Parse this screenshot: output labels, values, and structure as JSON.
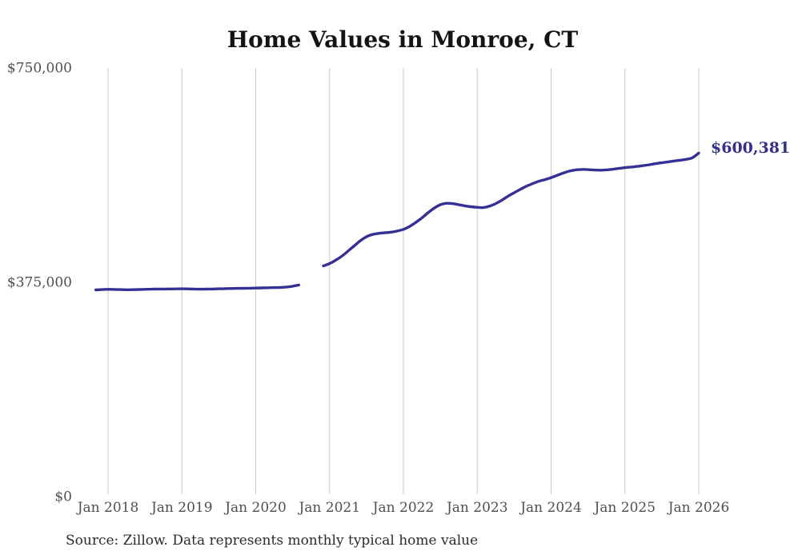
{
  "title": "Home Values in Monroe, CT",
  "source_note": "Source: Zillow. Data represents monthly typical home value",
  "colors": {
    "line": "#353096",
    "end_label": "#30308f",
    "gridline": "#cbcbcb",
    "axis_text": "#4f4f4f",
    "title_text": "#141414",
    "source_text": "#2b2b2b"
  },
  "chart_data": {
    "type": "line",
    "title": "Home Values in Monroe, CT",
    "unit": "USD",
    "ylim": [
      0,
      750000
    ],
    "grid": "vertical-only",
    "legend": "none",
    "end_label": "$600,381",
    "final_value": 600381,
    "y_ticks": [
      {
        "value": 0,
        "label": "$0"
      },
      {
        "value": 375000,
        "label": "$375,000"
      },
      {
        "value": 750000,
        "label": "$750,000"
      }
    ],
    "x_ticks": [
      {
        "month_index": 0,
        "label": "Jan 2018"
      },
      {
        "month_index": 12,
        "label": "Jan 2019"
      },
      {
        "month_index": 24,
        "label": "Jan 2020"
      },
      {
        "month_index": 36,
        "label": "Jan 2021"
      },
      {
        "month_index": 48,
        "label": "Jan 2022"
      },
      {
        "month_index": 60,
        "label": "Jan 2023"
      },
      {
        "month_index": 72,
        "label": "Jan 2024"
      },
      {
        "month_index": 84,
        "label": "Jan 2025"
      },
      {
        "month_index": 96,
        "label": "Jan 2026"
      }
    ],
    "series": [
      {
        "name": "Monthly typical home value",
        "note": "Line has a data gap between Aug 2020 and Dec 2020",
        "segments": [
          {
            "start": "Nov 2017",
            "start_month_index": -2,
            "values": [
              361000,
              361500,
              362000,
              361800,
              361500,
              361300,
              361400,
              361700,
              362000,
              362300,
              362500,
              362600,
              362700,
              362800,
              363000,
              362800,
              362500,
              362300,
              362400,
              362600,
              362900,
              363200,
              363400,
              363600,
              363800,
              364000,
              364200,
              364500,
              364800,
              365000,
              365300,
              366000,
              367500,
              369500
            ]
          },
          {
            "start": "Dec 2020",
            "start_month_index": 35,
            "values": [
              403000,
              407000,
              413000,
              420000,
              429000,
              438000,
              447000,
              454000,
              458000,
              460000,
              461000,
              462000,
              464000,
              467000,
              472000,
              479000,
              487000,
              496000,
              504000,
              510000,
              512500,
              512000,
              510000,
              508000,
              506500,
              505500,
              505000,
              507500,
              512000,
              518000,
              525000,
              531000,
              537000,
              542500,
              547000,
              551000,
              554000,
              557500,
              561500,
              565500,
              569000,
              571000,
              571800,
              571500,
              570800,
              570500,
              571000,
              572000,
              573500,
              575000,
              576000,
              577000,
              578500,
              580000,
              582000,
              583500,
              585000,
              586500,
              588000,
              589500,
              592500,
              600381
            ]
          }
        ]
      }
    ]
  }
}
